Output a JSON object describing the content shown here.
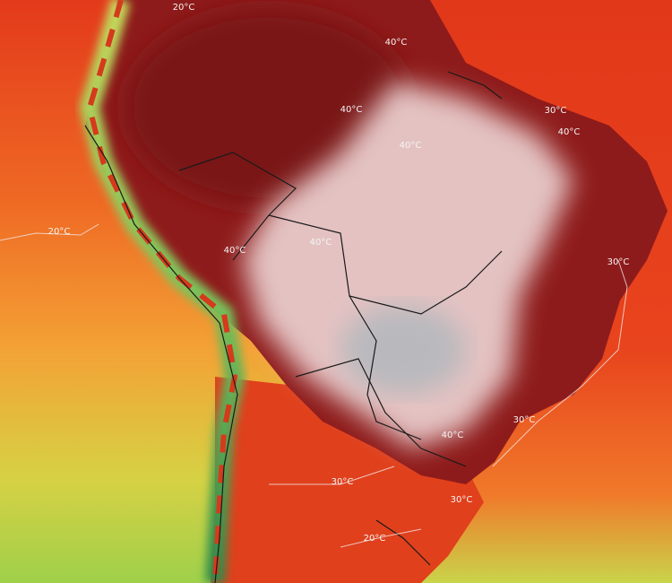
{
  "contour_labels": [
    "20°C",
    "40°C",
    "30°C",
    "40°C",
    "40°C",
    "40°C",
    "20°C",
    "40°C",
    "40°C",
    "30°C",
    "30°C",
    "40°C",
    "30°C",
    "30°C",
    "20°C"
  ]
}
